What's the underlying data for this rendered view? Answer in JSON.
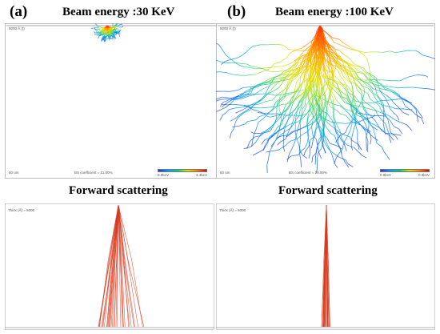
{
  "panels": [
    {
      "letter": "(a)",
      "beam_title": "Beam energy :30 KeV",
      "sim_header": "5000 Å (t)",
      "scale_label": "50 um",
      "coeff_label": "BS coefficient = 11.00%",
      "color_min": "0.0keV",
      "color_max": "3.4keV",
      "sub_title": "Forward scattering",
      "thick_label": "Thick (Å) = 5000"
    },
    {
      "letter": "(b)",
      "beam_title": "Beam energy :100 KeV",
      "sim_header": "5000 Å (t)",
      "scale_label": "50 um",
      "coeff_label": "BS coefficient = 20.00%",
      "color_min": "0.0keV",
      "color_max": "0.0keV",
      "sub_title": "Forward scattering",
      "thick_label": "Thick (Å) = 5000"
    }
  ],
  "colors": {
    "trajectory_hot": "#ff8c00",
    "trajectory_cool": "#1e64ff",
    "forward_scatter": "#d83a1e"
  }
}
